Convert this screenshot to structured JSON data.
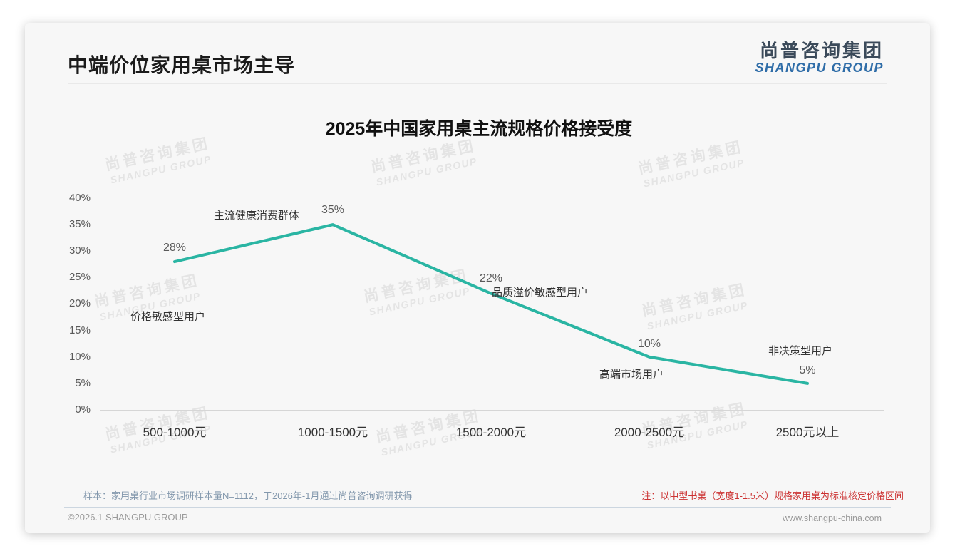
{
  "header": {
    "title": "中端价位家用桌市场主导",
    "logo_cn": "尚普咨询集团",
    "logo_en": "SHANGPU GROUP"
  },
  "watermark": {
    "line1": "尚普咨询集团",
    "line2": "SHANGPU GROUP"
  },
  "chart_data": {
    "type": "line",
    "title": "2025年中国家用桌主流规格价格接受度",
    "categories": [
      "500-1000元",
      "1000-1500元",
      "1500-2000元",
      "2000-2500元",
      "2500元以上"
    ],
    "values": [
      28,
      35,
      22,
      10,
      5
    ],
    "value_labels": [
      "28%",
      "35%",
      "22%",
      "10%",
      "5%"
    ],
    "point_annotations": [
      "价格敏感型用户",
      "主流健康消费群体",
      "品质溢价敏感型用户",
      "高端市场用户",
      "非决策型用户"
    ],
    "xlabel": "",
    "ylabel": "",
    "y_ticks": [
      "40%",
      "35%",
      "30%",
      "25%",
      "20%",
      "15%",
      "10%",
      "5%",
      "0%"
    ],
    "ylim": [
      0,
      40
    ],
    "grid": false,
    "legend": "none",
    "line_color": "#2ab5a3"
  },
  "footnotes": {
    "sample": "样本：家用桌行业市场调研样本量N=1112，于2026年-1月通过尚普咨询调研获得",
    "red_note": "注：以中型书桌（宽度1-1.5米）规格家用桌为标准核定价格区间"
  },
  "footer": {
    "copyright": "©2026.1 SHANGPU GROUP",
    "url": "www.shangpu-china.com"
  }
}
